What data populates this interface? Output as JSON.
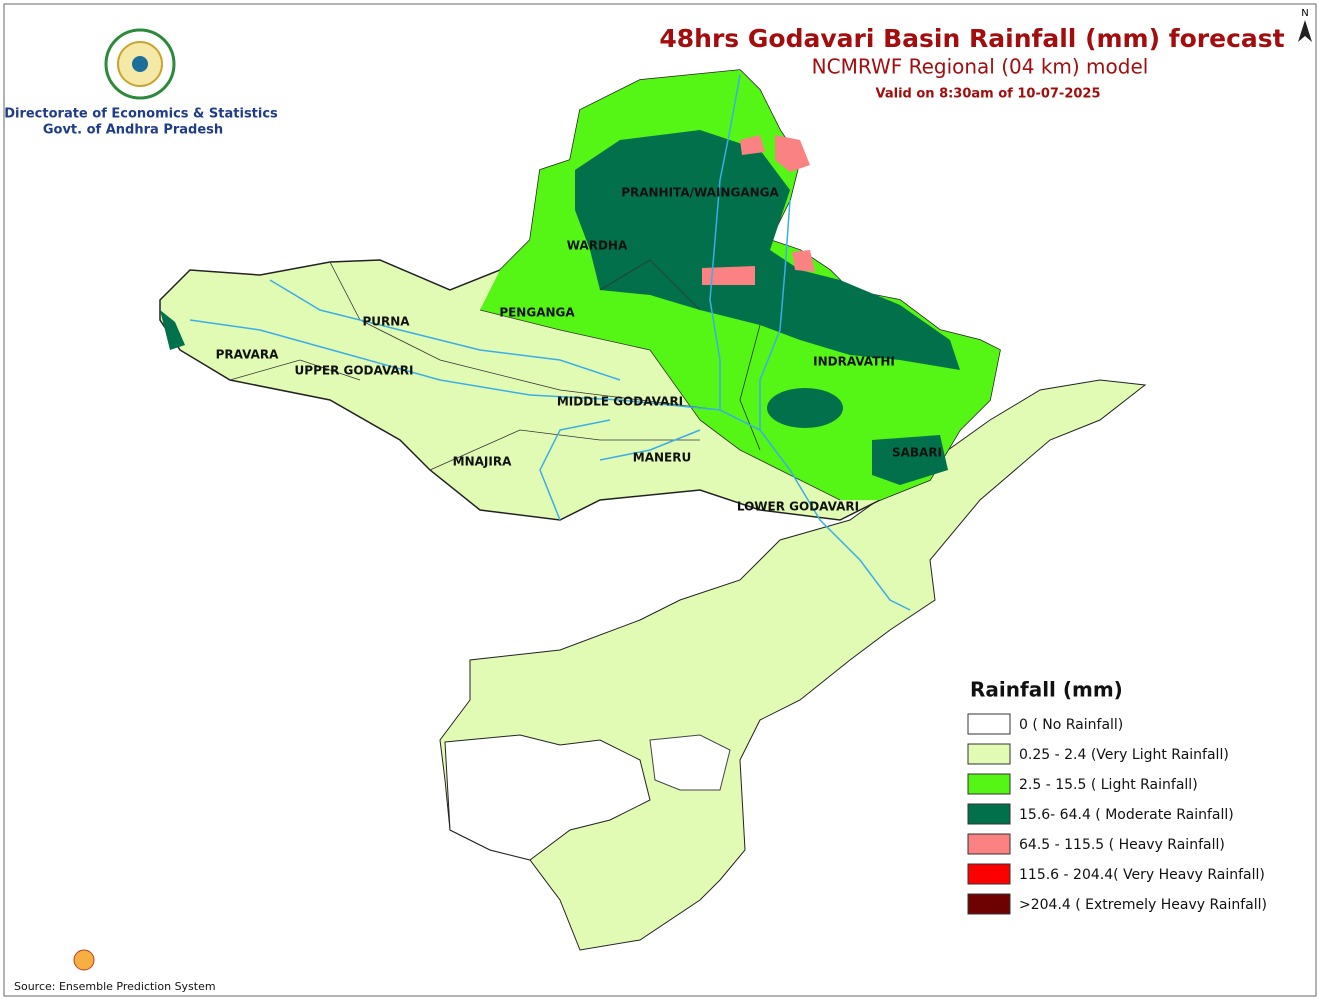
{
  "header": {
    "title": "48hrs Godavari Basin Rainfall (mm) forecast",
    "subtitle": "NCMRWF Regional (04 km) model",
    "valid": "Valid on 8:30am of 10-07-2025"
  },
  "organization": {
    "line1": "Directorate of Economics & Statistics",
    "line2": "Govt. of Andhra Pradesh"
  },
  "north": "N",
  "basins": [
    "PRANHITA/WAINGANGA",
    "WARDHA",
    "PENGANGA",
    "PURNA",
    "PRAVARA",
    "UPPER GODAVARI",
    "MIDDLE GODAVARI",
    "INDRAVATHI",
    "SABARI",
    "MNAJIRA",
    "MANERU",
    "LOWER GODAVARI"
  ],
  "legend": {
    "title": "Rainfall (mm)",
    "items": [
      {
        "label": "0 ( No Rainfall)",
        "color": "#ffffff"
      },
      {
        "label": "0.25 - 2.4 (Very Light Rainfall)",
        "color": "#e2fbb4"
      },
      {
        "label": "2.5 - 15.5 ( Light Rainfall)",
        "color": "#55f516"
      },
      {
        "label": "15.6- 64.4 ( Moderate Rainfall)",
        "color": "#02704a"
      },
      {
        "label": "64.5 - 115.5 ( Heavy Rainfall)",
        "color": "#fa8282"
      },
      {
        "label": "115.6 - 204.4( Very Heavy Rainfall)",
        "color": "#fb0101"
      },
      {
        "label": ">204.4 ( Extremely Heavy Rainfall)",
        "color": "#6e0101"
      }
    ]
  },
  "source": "Source: Ensemble Prediction System"
}
